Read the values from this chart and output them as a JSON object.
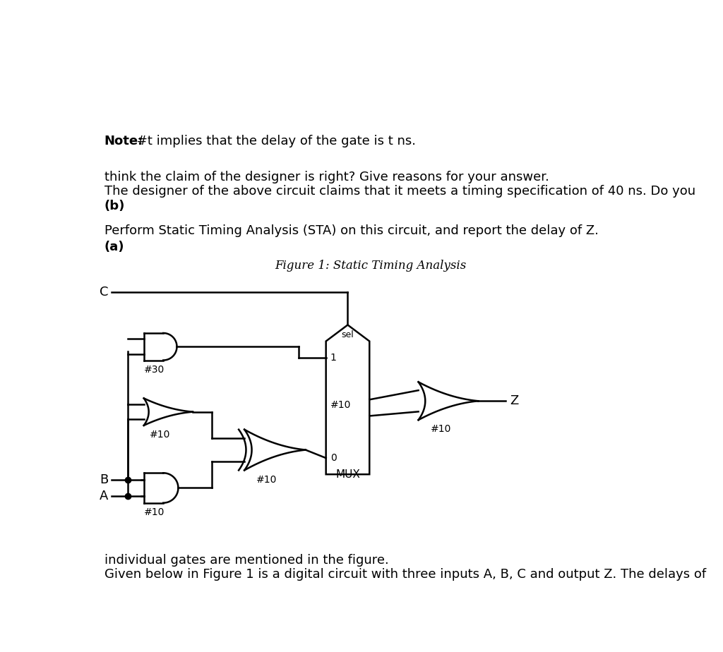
{
  "intro_line1": "Given below in Figure 1 is a digital circuit with three inputs A, B, C and output Z. The delays of",
  "intro_line2": "individual gates are mentioned in the figure.",
  "figure_caption": "Figure 1: Static Timing Analysis",
  "part_a_label": "(a)",
  "part_a_text": "Perform Static Timing Analysis (STA) on this circuit, and report the delay of Z.",
  "part_b_label": "(b)",
  "part_b_line1": "The designer of the above circuit claims that it meets a timing specification of 40 ns. Do you",
  "part_b_line2": "think the claim of the designer is right? Give reasons for your answer.",
  "note_bold": "Note:",
  "note_rest": " #t implies that the delay of the gate is t ns.",
  "background_color": "#ffffff",
  "text_color": "#000000",
  "gate_delay_and1": "#10",
  "gate_delay_or1": "#10",
  "gate_delay_buf": "#30",
  "gate_delay_xor": "#10",
  "gate_delay_mux": "#10",
  "gate_delay_final": "#10",
  "mux_label": "MUX",
  "mux_0": "0",
  "mux_1": "1",
  "mux_sel": "sel",
  "output_label": "Z",
  "input_A": "A",
  "input_B": "B",
  "input_C": "C"
}
